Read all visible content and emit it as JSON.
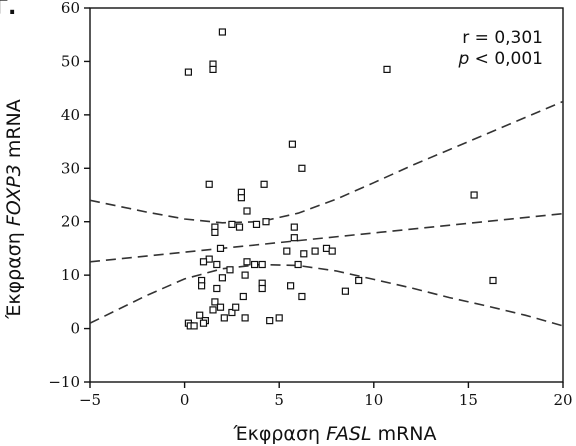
{
  "chart_data": {
    "type": "scatter",
    "panel_label": "Γ.",
    "xlabel": {
      "pre": "Έκφραση ",
      "italic": "FASL",
      "post": " mRNA"
    },
    "ylabel": {
      "pre": "Έκφραση ",
      "italic": "FOXP3",
      "post": " mRNA"
    },
    "xlim": [
      -5,
      20
    ],
    "ylim": [
      -10,
      60
    ],
    "xticks": [
      -5,
      0,
      5,
      10,
      15,
      20
    ],
    "yticks": [
      -10,
      0,
      10,
      20,
      30,
      40,
      50,
      60
    ],
    "annotation": {
      "r_text": "r = 0,301",
      "p_symbol": "p",
      "p_text": " < 0,001"
    },
    "grid": false,
    "points": [
      [
        0.2,
        48
      ],
      [
        1.5,
        49.5
      ],
      [
        1.5,
        48.5
      ],
      [
        2.0,
        55.5
      ],
      [
        10.7,
        48.5
      ],
      [
        5.7,
        34.5
      ],
      [
        6.2,
        30
      ],
      [
        15.3,
        25
      ],
      [
        16.3,
        9
      ],
      [
        1.3,
        27
      ],
      [
        3.0,
        25.5
      ],
      [
        3.0,
        24.5
      ],
      [
        4.2,
        27
      ],
      [
        3.3,
        22
      ],
      [
        3.8,
        19.5
      ],
      [
        1.6,
        19
      ],
      [
        1.6,
        18
      ],
      [
        2.5,
        19.5
      ],
      [
        2.9,
        19
      ],
      [
        4.3,
        20
      ],
      [
        5.8,
        19
      ],
      [
        5.8,
        17
      ],
      [
        1.9,
        15
      ],
      [
        1.7,
        12
      ],
      [
        2.4,
        11
      ],
      [
        1.3,
        13
      ],
      [
        1.0,
        12.5
      ],
      [
        2.0,
        9.5
      ],
      [
        3.3,
        12.5
      ],
      [
        3.7,
        12
      ],
      [
        4.1,
        12
      ],
      [
        3.2,
        10
      ],
      [
        4.1,
        8.5
      ],
      [
        4.1,
        7.5
      ],
      [
        5.4,
        14.5
      ],
      [
        6.3,
        14
      ],
      [
        6.9,
        14.5
      ],
      [
        7.5,
        15
      ],
      [
        7.8,
        14.5
      ],
      [
        6.0,
        12
      ],
      [
        8.5,
        7
      ],
      [
        9.2,
        9
      ],
      [
        5.6,
        8
      ],
      [
        6.2,
        6
      ],
      [
        0.9,
        9
      ],
      [
        0.9,
        8
      ],
      [
        1.7,
        7.5
      ],
      [
        1.6,
        5
      ],
      [
        1.5,
        3.5
      ],
      [
        2.1,
        2
      ],
      [
        2.5,
        3
      ],
      [
        1.9,
        4
      ],
      [
        3.1,
        6
      ],
      [
        2.7,
        4
      ],
      [
        3.2,
        2
      ],
      [
        4.5,
        1.5
      ],
      [
        5.0,
        2
      ],
      [
        0.2,
        1
      ],
      [
        0.3,
        0.5
      ],
      [
        0.5,
        0.5
      ],
      [
        0.8,
        2.5
      ],
      [
        1.1,
        1.5
      ],
      [
        1.0,
        1
      ]
    ],
    "fit_line": {
      "style": "dashed",
      "x": [
        -5,
        20
      ],
      "y": [
        12.5,
        21.5
      ]
    },
    "ci_upper": {
      "style": "dashed",
      "x": [
        -5,
        -2,
        0,
        2,
        4,
        6,
        8,
        10,
        12,
        14,
        16,
        18,
        20
      ],
      "y": [
        24,
        21.8,
        20.5,
        19.8,
        20,
        21.6,
        24.2,
        27.3,
        30.5,
        33.5,
        36.5,
        39.5,
        42.5
      ]
    },
    "ci_lower": {
      "style": "dashed",
      "x": [
        -5,
        -2,
        0,
        2,
        4,
        6,
        8,
        10,
        12,
        14,
        16,
        18,
        20
      ],
      "y": [
        1,
        6.2,
        9.3,
        11.2,
        12,
        11.8,
        10.8,
        9.2,
        7.6,
        5.8,
        4.2,
        2.5,
        0.5
      ]
    }
  }
}
